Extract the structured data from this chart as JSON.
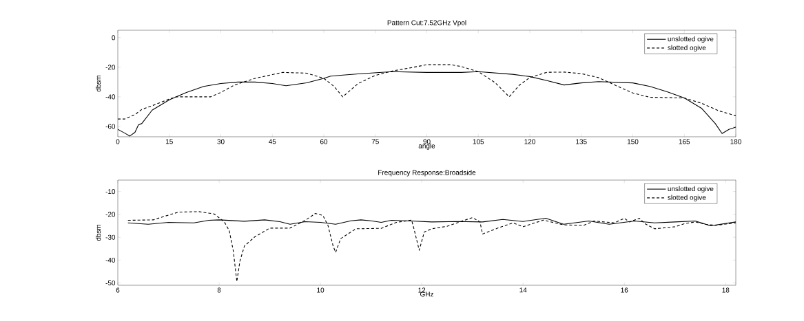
{
  "chart_data": [
    {
      "type": "line",
      "title": "Pattern Cut:7.52GHz Vpol",
      "xlabel": "angle",
      "ylabel": "dbsm",
      "xlim": [
        0,
        180
      ],
      "ylim": [
        -67,
        5
      ],
      "xticks": [
        0,
        15,
        30,
        45,
        60,
        75,
        90,
        105,
        120,
        135,
        150,
        165,
        180
      ],
      "yticks": [
        -60,
        -40,
        -20,
        0
      ],
      "legend": "top right",
      "series": [
        {
          "name": "unslotted ogive",
          "color": "#000000",
          "line_style": "solid",
          "x": [
            0,
            2,
            3.5,
            5,
            6,
            7,
            10,
            15,
            20,
            25,
            30,
            35,
            40,
            45,
            49,
            55,
            60,
            62,
            70,
            80,
            90,
            100,
            105,
            115,
            120,
            125,
            130,
            135,
            140,
            150,
            155,
            160,
            165,
            170,
            174,
            176,
            178,
            180
          ],
          "values": [
            -62,
            -64.5,
            -66.5,
            -64,
            -59,
            -58,
            -49,
            -42,
            -37,
            -33,
            -31,
            -30,
            -30,
            -31,
            -32.5,
            -30.5,
            -27.5,
            -26,
            -24.5,
            -23,
            -23.5,
            -23.5,
            -23,
            -24.8,
            -26.3,
            -29,
            -32,
            -30.6,
            -29.7,
            -30.6,
            -33,
            -36.6,
            -40.8,
            -47.7,
            -58,
            -64.8,
            -62,
            -60.5
          ]
        },
        {
          "name": "slotted ogive",
          "color": "#000000",
          "line_style": "dashed",
          "x": [
            0,
            2,
            5,
            7,
            10,
            15,
            17,
            20,
            27,
            30,
            34,
            40,
            45,
            48,
            55,
            60,
            63,
            65.5,
            70,
            75,
            80,
            85,
            90,
            97,
            100,
            105,
            110,
            114,
            117,
            120,
            125,
            130,
            135,
            140,
            145,
            150,
            155,
            160,
            165,
            170,
            175,
            180
          ],
          "values": [
            -55,
            -55,
            -52,
            -48.5,
            -46,
            -41.5,
            -40,
            -40,
            -40,
            -37,
            -32,
            -27.5,
            -25,
            -23.5,
            -24,
            -27.5,
            -33,
            -40,
            -31,
            -25.5,
            -22.5,
            -20.5,
            -18.3,
            -18.3,
            -19.5,
            -23,
            -30.6,
            -40,
            -32,
            -27,
            -23.4,
            -23.3,
            -24.3,
            -27,
            -32.3,
            -37.4,
            -40.3,
            -40.5,
            -40.8,
            -44.3,
            -49.4,
            -52.8
          ]
        }
      ]
    },
    {
      "type": "line",
      "title": "Frequency Response:Broadside",
      "xlabel": "GHz",
      "ylabel": "dbsm",
      "xlim": [
        6,
        18.2
      ],
      "ylim": [
        -51,
        -5
      ],
      "xticks": [
        6,
        8,
        10,
        12,
        14,
        16,
        18
      ],
      "yticks": [
        -50,
        -40,
        -30,
        -20,
        -10
      ],
      "legend": "top right",
      "series": [
        {
          "name": "unslotted ogive",
          "color": "#000000",
          "line_style": "solid",
          "x": [
            6.2,
            6.6,
            7,
            7.5,
            7.8,
            8,
            8.5,
            8.9,
            9.2,
            9.4,
            9.7,
            10,
            10.3,
            10.6,
            10.8,
            11,
            11.2,
            11.4,
            11.8,
            12.2,
            12.7,
            13.2,
            13.6,
            14,
            14.45,
            14.8,
            15.3,
            15.7,
            16.2,
            16.6,
            17,
            17.4,
            17.7,
            18.2
          ],
          "values": [
            -23.7,
            -24.3,
            -23.5,
            -23.7,
            -22.6,
            -22.4,
            -23,
            -22.4,
            -23.2,
            -24.3,
            -23.2,
            -23.5,
            -24.3,
            -22.8,
            -22.4,
            -22.8,
            -23.5,
            -22.6,
            -22.9,
            -23.3,
            -23.1,
            -23.3,
            -22.2,
            -23.1,
            -21.7,
            -24.3,
            -22.9,
            -24.3,
            -22.9,
            -23.7,
            -23.3,
            -22.9,
            -25,
            -23.3
          ]
        },
        {
          "name": "slotted ogive",
          "color": "#000000",
          "line_style": "dashed",
          "x": [
            6.2,
            6.7,
            7,
            7.2,
            7.6,
            7.9,
            8.1,
            8.2,
            8.28,
            8.35,
            8.41,
            8.5,
            8.7,
            9,
            9.4,
            9.7,
            9.9,
            10.05,
            10.15,
            10.25,
            10.3,
            10.4,
            10.7,
            11.2,
            11.5,
            11.8,
            11.85,
            11.95,
            12.05,
            12.2,
            12.5,
            12.8,
            13,
            13.15,
            13.2,
            13.5,
            13.8,
            14,
            14.4,
            14.8,
            15.2,
            15.4,
            15.8,
            16,
            16.1,
            16.3,
            16.4,
            16.6,
            17,
            17.2,
            17.4,
            17.6,
            17.8,
            18.2
          ],
          "values": [
            -22.6,
            -22.4,
            -20.3,
            -19,
            -18.8,
            -19.8,
            -23.2,
            -27.1,
            -36,
            -49.4,
            -40.5,
            -33.8,
            -29.9,
            -26,
            -26,
            -22.6,
            -19.6,
            -20.5,
            -24.9,
            -33.8,
            -36.6,
            -30.6,
            -26.3,
            -26.1,
            -23.5,
            -22.5,
            -26.6,
            -35.7,
            -27.7,
            -26.3,
            -25.2,
            -22.9,
            -21.4,
            -23.3,
            -28.6,
            -26,
            -23.7,
            -25.4,
            -22.5,
            -24.6,
            -24.8,
            -22.9,
            -23.7,
            -21.7,
            -23.3,
            -21.7,
            -24,
            -26.3,
            -25.4,
            -24,
            -23.3,
            -24.3,
            -24.8,
            -23.7
          ]
        }
      ]
    }
  ]
}
